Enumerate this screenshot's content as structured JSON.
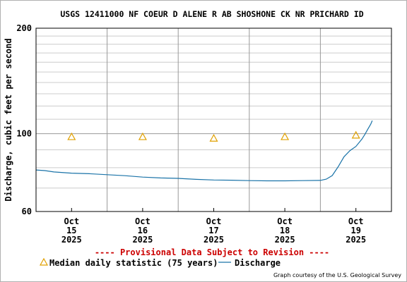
{
  "chart_data": {
    "type": "line",
    "title": "USGS 12411000 NF COEUR D ALENE R AB SHOSHONE CK NR PRICHARD ID",
    "ylabel": "Discharge, cubic feet per second",
    "xlabel": "",
    "y_scale": "log",
    "ylim": [
      60,
      200
    ],
    "xlim": [
      "2025-10-14T12:00",
      "2025-10-19T12:00"
    ],
    "y_ticks": [
      {
        "value": 60,
        "label": "60"
      },
      {
        "value": 100,
        "label": "100"
      },
      {
        "value": 200,
        "label": "200"
      }
    ],
    "y_minor_gridlines": [
      70,
      80,
      90,
      110,
      120,
      130,
      140,
      150,
      160,
      170,
      180,
      190
    ],
    "x_ticks": [
      {
        "x": "2025-10-15T00:00",
        "month": "Oct",
        "day": "15",
        "year": "2025"
      },
      {
        "x": "2025-10-16T00:00",
        "month": "Oct",
        "day": "16",
        "year": "2025"
      },
      {
        "x": "2025-10-17T00:00",
        "month": "Oct",
        "day": "17",
        "year": "2025"
      },
      {
        "x": "2025-10-18T00:00",
        "month": "Oct",
        "day": "18",
        "year": "2025"
      },
      {
        "x": "2025-10-19T00:00",
        "month": "Oct",
        "day": "19",
        "year": "2025"
      }
    ],
    "x_major_gridlines": [
      "2025-10-15T12:00",
      "2025-10-16T12:00",
      "2025-10-17T12:00",
      "2025-10-18T12:00"
    ],
    "grid": true,
    "legend_position": "bottom",
    "series": [
      {
        "name": "Discharge",
        "kind": "line",
        "color": "#1a73a8",
        "points": [
          [
            "2025-10-14T12:00",
            78.8
          ],
          [
            "2025-10-14T15:00",
            78.5
          ],
          [
            "2025-10-14T18:00",
            77.8
          ],
          [
            "2025-10-15T00:00",
            77.2
          ],
          [
            "2025-10-15T06:00",
            76.9
          ],
          [
            "2025-10-15T12:00",
            76.4
          ],
          [
            "2025-10-15T18:00",
            75.9
          ],
          [
            "2025-10-16T00:00",
            75.2
          ],
          [
            "2025-10-16T06:00",
            74.8
          ],
          [
            "2025-10-16T12:00",
            74.6
          ],
          [
            "2025-10-16T18:00",
            74.1
          ],
          [
            "2025-10-17T00:00",
            73.8
          ],
          [
            "2025-10-17T06:00",
            73.7
          ],
          [
            "2025-10-17T12:00",
            73.5
          ],
          [
            "2025-10-17T18:00",
            73.4
          ],
          [
            "2025-10-18T00:00",
            73.4
          ],
          [
            "2025-10-18T06:00",
            73.5
          ],
          [
            "2025-10-18T12:00",
            73.6
          ],
          [
            "2025-10-18T14:00",
            74.2
          ],
          [
            "2025-10-18T16:00",
            76.0
          ],
          [
            "2025-10-18T18:00",
            80.5
          ],
          [
            "2025-10-18T20:00",
            86.0
          ],
          [
            "2025-10-18T22:00",
            89.5
          ],
          [
            "2025-10-19T00:00",
            92.0
          ],
          [
            "2025-10-19T02:00",
            96.5
          ],
          [
            "2025-10-19T03:00",
            99.5
          ],
          [
            "2025-10-19T04:00",
            103.0
          ],
          [
            "2025-10-19T05:00",
            106.5
          ],
          [
            "2025-10-19T05:30",
            109.0
          ]
        ]
      },
      {
        "name": "Median daily statistic (75 years)",
        "kind": "marker",
        "color": "#e0a000",
        "points": [
          [
            "2025-10-15T00:00",
            98
          ],
          [
            "2025-10-16T00:00",
            98
          ],
          [
            "2025-10-17T00:00",
            97
          ],
          [
            "2025-10-18T00:00",
            98
          ],
          [
            "2025-10-19T00:00",
            99
          ]
        ]
      }
    ],
    "notice": "---- Provisional Data Subject to Revision ----",
    "credit": "Graph courtesy of the U.S. Geological Survey"
  }
}
